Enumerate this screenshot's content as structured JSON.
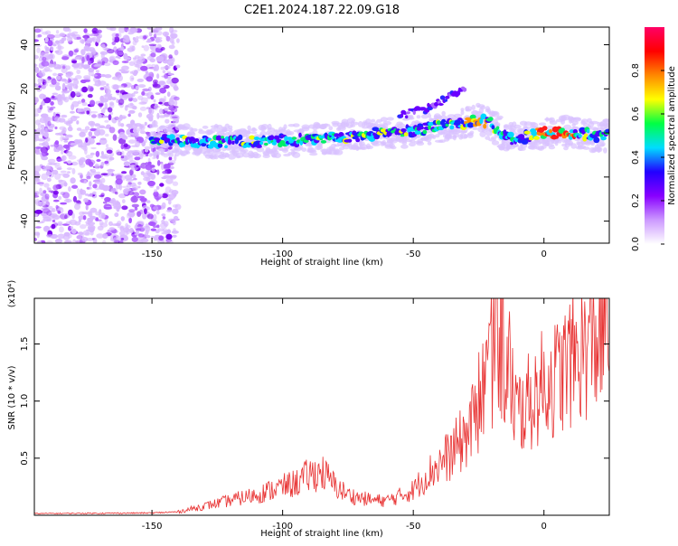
{
  "title": "C2E1.2024.187.22.09.G18",
  "chart_data": [
    {
      "type": "heatmap",
      "xlabel": "Height of straight line (km)",
      "ylabel": "Frequency (Hz)",
      "xlim": [
        -195,
        25
      ],
      "ylim": [
        -50,
        48
      ],
      "x_ticks": [
        -150,
        -100,
        -50,
        0
      ],
      "y_ticks": [
        -40,
        -20,
        0,
        20,
        40
      ],
      "colorbar": {
        "label": "Normalized spectral amplitude",
        "range": [
          0.0,
          1.0
        ],
        "ticks": [
          "0.0",
          "0.2",
          "0.4",
          "0.6",
          "0.8"
        ],
        "colors": [
          "#ffffff",
          "#cc99ff",
          "#8800ff",
          "#2200ff",
          "#00ddff",
          "#00ff44",
          "#ffff00",
          "#ff8800",
          "#ff0000",
          "#ff0066"
        ]
      },
      "dominant_frequency_track": {
        "x": [
          -150,
          -130,
          -110,
          -90,
          -70,
          -50,
          -40,
          -30,
          -25,
          -20,
          -15,
          -10,
          -5,
          0,
          10,
          20,
          25
        ],
        "y": [
          -3,
          -4,
          -4,
          -3,
          -1,
          1,
          3,
          5,
          6,
          4,
          -2,
          -3,
          -1,
          0,
          0,
          -1,
          -1
        ]
      },
      "secondary_track": {
        "x": [
          -55,
          -45,
          -35,
          -30
        ],
        "y": [
          8,
          11,
          17,
          20
        ]
      }
    },
    {
      "type": "line",
      "xlabel": "Height of straight line (km)",
      "ylabel": "SNR (10 * v/v)",
      "multiplier_label": "(x10⁴)",
      "xlim": [
        -195,
        25
      ],
      "ylim": [
        0,
        19000
      ],
      "x_ticks": [
        -150,
        -100,
        -50,
        0
      ],
      "y_ticks": [
        "0.5",
        "1.0",
        "1.5"
      ],
      "y_tick_values": [
        5000,
        10000,
        15000
      ],
      "color": "#e83232",
      "series": [
        {
          "x": [
            -195,
            -150,
            -140,
            -130,
            -120,
            -110,
            -100,
            -95,
            -90,
            -85,
            -80,
            -75,
            -70,
            -65,
            -60,
            -55,
            -50,
            -45,
            -40,
            -35,
            -30,
            -25,
            -22,
            -20,
            -17,
            -15,
            -12,
            -10,
            -5,
            0,
            5,
            10,
            15,
            20,
            25
          ],
          "values": [
            150,
            200,
            300,
            800,
            1300,
            1800,
            2500,
            2800,
            3500,
            3800,
            2600,
            1800,
            1500,
            1300,
            1300,
            1700,
            2200,
            3500,
            4500,
            5500,
            7000,
            9000,
            12500,
            13000,
            14500,
            13500,
            10500,
            9000,
            10000,
            11500,
            12000,
            13500,
            14500,
            15500,
            16500
          ]
        }
      ]
    }
  ]
}
